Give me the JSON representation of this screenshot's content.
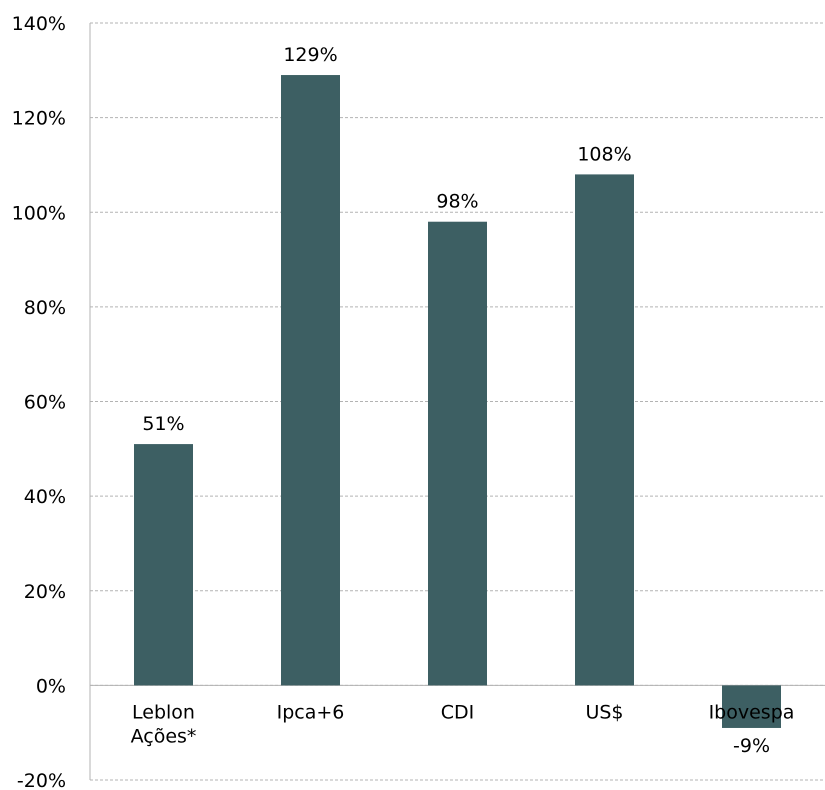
{
  "chart_data": {
    "type": "bar",
    "categories": [
      [
        "Leblon",
        "Ações*"
      ],
      [
        "Ipca+6"
      ],
      [
        "CDI"
      ],
      [
        "US$"
      ],
      [
        "Ibovespa"
      ]
    ],
    "values": [
      51,
      129,
      98,
      108,
      -9
    ],
    "data_labels": [
      "51%",
      "129%",
      "98%",
      "108%",
      "-9%"
    ],
    "y_ticks": [
      "140%",
      "120%",
      "100%",
      "80%",
      "60%",
      "40%",
      "20%",
      "0%",
      "-20%"
    ],
    "ylim": [
      -20,
      140
    ],
    "grid": true,
    "legend": "none",
    "bar_color": "#3d5f63",
    "title": "",
    "xlabel": "",
    "ylabel": ""
  }
}
